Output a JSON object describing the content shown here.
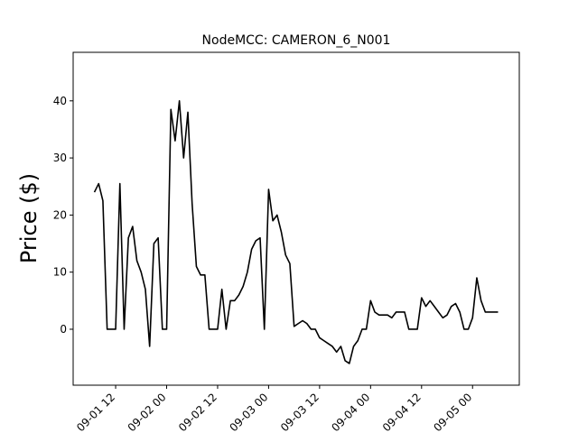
{
  "chart_data": {
    "type": "line",
    "title": "NodeMCC: CAMERON_6_N001",
    "ylabel": "Price ($)",
    "x": [
      "09-01 07",
      "09-01 08",
      "09-01 09",
      "09-01 10",
      "09-01 11",
      "09-01 12",
      "09-01 13",
      "09-01 14",
      "09-01 15",
      "09-01 16",
      "09-01 17",
      "09-01 18",
      "09-01 19",
      "09-01 20",
      "09-01 21",
      "09-01 22",
      "09-01 23",
      "09-02 00",
      "09-02 01",
      "09-02 02",
      "09-02 03",
      "09-02 04",
      "09-02 05",
      "09-02 06",
      "09-02 07",
      "09-02 08",
      "09-02 09",
      "09-02 10",
      "09-02 11",
      "09-02 12",
      "09-02 13",
      "09-02 14",
      "09-02 15",
      "09-02 16",
      "09-02 17",
      "09-02 18",
      "09-02 19",
      "09-02 20",
      "09-02 21",
      "09-02 22",
      "09-02 23",
      "09-03 00",
      "09-03 01",
      "09-03 02",
      "09-03 03",
      "09-03 04",
      "09-03 05",
      "09-03 06",
      "09-03 07",
      "09-03 08",
      "09-03 09",
      "09-03 10",
      "09-03 11",
      "09-03 12",
      "09-03 13",
      "09-03 14",
      "09-03 15",
      "09-03 16",
      "09-03 17",
      "09-03 18",
      "09-03 19",
      "09-03 20",
      "09-03 21",
      "09-03 22",
      "09-03 23",
      "09-04 00",
      "09-04 01",
      "09-04 02",
      "09-04 03",
      "09-04 04",
      "09-04 05",
      "09-04 06",
      "09-04 07",
      "09-04 08",
      "09-04 09",
      "09-04 10",
      "09-04 11",
      "09-04 12",
      "09-04 13",
      "09-04 14",
      "09-04 15",
      "09-04 16",
      "09-04 17",
      "09-04 18",
      "09-04 19",
      "09-04 20",
      "09-04 21",
      "09-04 22",
      "09-04 23",
      "09-05 00",
      "09-05 01",
      "09-05 02",
      "09-05 03",
      "09-05 04",
      "09-05 05",
      "09-05 06"
    ],
    "series": [
      {
        "color": "#000000",
        "values": [
          24,
          25.5,
          22.5,
          0,
          0,
          0,
          25.5,
          0,
          16,
          18,
          12,
          10,
          7,
          -3,
          15,
          16,
          0,
          0,
          38.5,
          33,
          40,
          30,
          38,
          22,
          11,
          9.5,
          9.5,
          0,
          0,
          0,
          7,
          0,
          5,
          5,
          6,
          7.5,
          10,
          14,
          15.5,
          16,
          0,
          24.5,
          19,
          20,
          17,
          13,
          11.5,
          0.5,
          1,
          1.5,
          1,
          0,
          0,
          -1.5,
          -2,
          -2.5,
          -3,
          -4,
          -3,
          -5.5,
          -6,
          -3,
          -2,
          0,
          0,
          5,
          3,
          2.5,
          2.5,
          2.5,
          2,
          3,
          3,
          3,
          0,
          0,
          0,
          5.5,
          4,
          5,
          4,
          3,
          2,
          2.5,
          4,
          4.5,
          3,
          0,
          0,
          2,
          9,
          5,
          3,
          3,
          3,
          3
        ]
      }
    ],
    "xlim": [
      "09-01 02",
      "09-05 11"
    ],
    "xticks": [
      "09-01 12",
      "09-02 00",
      "09-02 12",
      "09-03 00",
      "09-03 12",
      "09-04 00",
      "09-04 12",
      "09-05 00"
    ],
    "ylim": [
      -9.8,
      48.5
    ],
    "yticks": [
      0,
      10,
      20,
      30,
      40
    ]
  }
}
